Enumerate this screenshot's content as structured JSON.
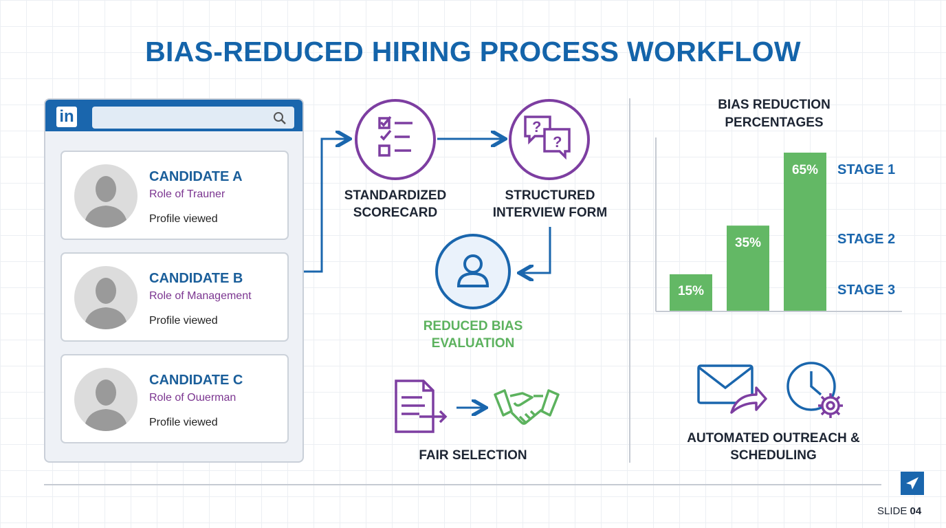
{
  "title": "BIAS-REDUCED HIRING PROCESS WORKFLOW",
  "browser": {
    "logo": "in",
    "search_icon": "search-icon"
  },
  "candidates": [
    {
      "name": "CANDIDATE A",
      "role": "Role of Trauner",
      "status": "Profile viewed"
    },
    {
      "name": "CANDIDATE B",
      "role": "Role of Management",
      "status": "Profile viewed"
    },
    {
      "name": "CANDIDATE C",
      "role": "Role of Oɯerman",
      "status": "Profile viewed"
    }
  ],
  "workflow": {
    "scorecard": "STANDARDIZED SCORECARD",
    "interview": "STRUCTURED INTERVIEW FORM",
    "evaluation": "REDUCED BIAS EVALUATION",
    "selection": "FAIR SELECTION",
    "outreach": "AUTOMATED OUTREACH & SCHEDULING"
  },
  "colors": {
    "primary": "#1a66ad",
    "purple": "#7d3ea1",
    "green": "#63b865"
  },
  "chart_data": {
    "type": "bar",
    "title": "BIAS REDUCTION PERCENTAGES",
    "categories": [
      "STAGE 3",
      "STAGE 2",
      "STAGE 1"
    ],
    "values": [
      15,
      35,
      65
    ],
    "data_labels": [
      "15%",
      "35%",
      "65%"
    ],
    "ylim": [
      0,
      70
    ],
    "grid": false
  },
  "footer": {
    "slide_prefix": "SLIDE",
    "slide_number": "04"
  }
}
